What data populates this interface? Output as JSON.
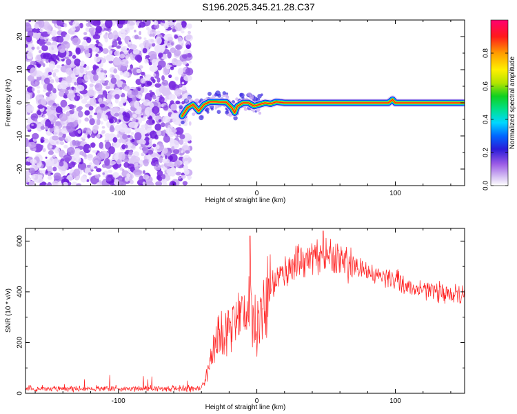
{
  "title": "S196.2025.345.21.28.C37",
  "chart_data": [
    {
      "type": "heatmap",
      "xlabel": "Height of straight line (km)",
      "ylabel": "Frequency (Hz)",
      "xlim": [
        -167,
        150
      ],
      "ylim": [
        -25,
        25
      ],
      "x_ticks": [
        "-100",
        "0",
        "100"
      ],
      "x_tick_values": [
        -100,
        0,
        100
      ],
      "y_ticks": [
        "20",
        "10",
        "0",
        "-10",
        "-20"
      ],
      "y_tick_values": [
        20,
        10,
        0,
        -10,
        -20
      ],
      "noise_region_x": [
        -167,
        -50
      ],
      "ridge_frequency_hz": 0,
      "ridge_x": [
        -54,
        -50,
        -46,
        -42,
        -38,
        -34,
        -30,
        -26,
        -22,
        -18,
        -16,
        -14,
        -10,
        -6,
        -2,
        2,
        6,
        10,
        14,
        20,
        40,
        60,
        80,
        95,
        98,
        100,
        150
      ],
      "ridge_y": [
        -4,
        -1.5,
        -0.5,
        -2.5,
        -0.5,
        0.3,
        0.3,
        0.2,
        0.2,
        -1.5,
        -3,
        -1,
        0,
        0,
        -1,
        -0.5,
        0,
        -0.3,
        0.3,
        0,
        0,
        0,
        0,
        0,
        1,
        0,
        0
      ],
      "colorbar": {
        "label": "Normalized spectral amplitude",
        "ticks": [
          "0.0",
          "0.2",
          "0.4",
          "0.6",
          "0.8"
        ],
        "tick_values": [
          0,
          0.2,
          0.4,
          0.6,
          0.8
        ],
        "range": [
          0,
          1
        ]
      }
    },
    {
      "type": "line",
      "xlabel": "Height of straight line (km)",
      "ylabel": "SNR (10 * v/v)",
      "xlim": [
        -167,
        150
      ],
      "ylim": [
        0,
        650
      ],
      "x_ticks": [
        "-100",
        "0",
        "100"
      ],
      "x_tick_values": [
        -100,
        0,
        100
      ],
      "y_ticks": [
        "0",
        "200",
        "400",
        "600"
      ],
      "y_tick_values": [
        0,
        200,
        400,
        600
      ],
      "series": [
        {
          "name": "SNR",
          "color": "#ff2020",
          "envelope_x": [
            -167,
            -40,
            -35,
            -30,
            -25,
            -20,
            -15,
            -10,
            -5,
            0,
            5,
            10,
            20,
            30,
            40,
            50,
            60,
            70,
            80,
            90,
            100,
            110,
            120,
            130,
            140,
            150
          ],
          "envelope_y": [
            18,
            18,
            90,
            190,
            240,
            270,
            290,
            330,
            320,
            260,
            360,
            420,
            480,
            520,
            540,
            540,
            520,
            500,
            480,
            460,
            450,
            420,
            410,
            400,
            390,
            380
          ],
          "spike_x": [
            -5,
            48
          ],
          "spike_y": [
            620,
            640
          ]
        }
      ]
    }
  ]
}
